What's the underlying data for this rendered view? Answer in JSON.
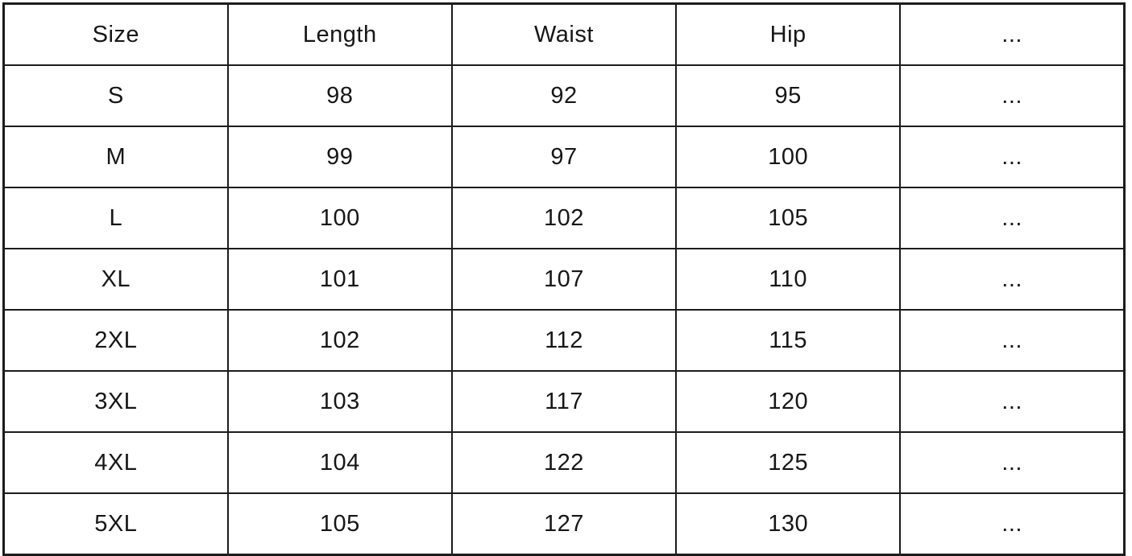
{
  "page": {
    "background": "#ffffff",
    "border_color": "#1c1c1c",
    "text_color": "#161616"
  },
  "chart_data": {
    "type": "table",
    "columns": [
      "Size",
      "Length",
      "Waist",
      "Hip",
      "..."
    ],
    "rows": [
      [
        "S",
        "98",
        "92",
        "95",
        "..."
      ],
      [
        "M",
        "99",
        "97",
        "100",
        "..."
      ],
      [
        "L",
        "100",
        "102",
        "105",
        "..."
      ],
      [
        "XL",
        "101",
        "107",
        "110",
        "..."
      ],
      [
        "2XL",
        "102",
        "112",
        "115",
        "..."
      ],
      [
        "3XL",
        "103",
        "117",
        "120",
        "..."
      ],
      [
        "4XL",
        "104",
        "122",
        "125",
        "..."
      ],
      [
        "5XL",
        "105",
        "127",
        "130",
        "..."
      ]
    ]
  }
}
